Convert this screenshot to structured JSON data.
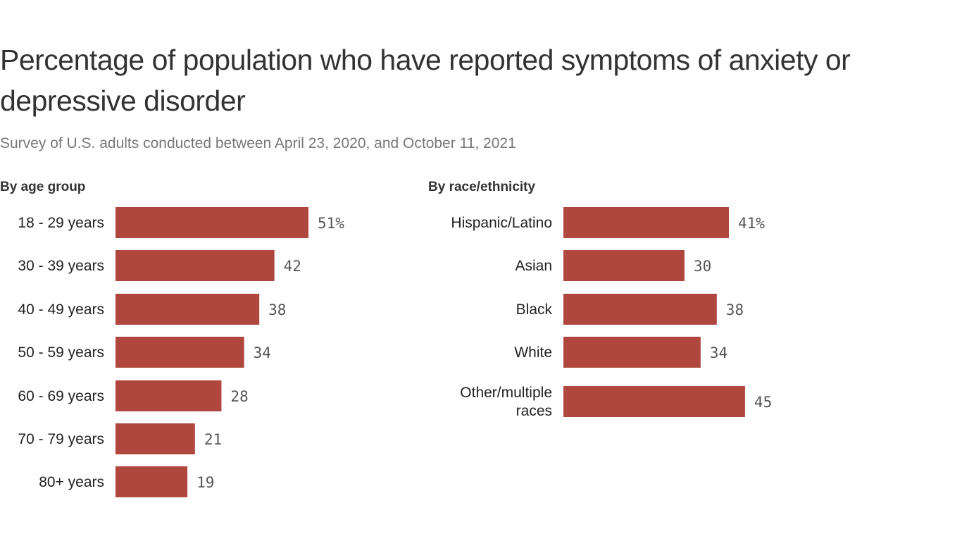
{
  "title": "Percentage of population who have reported symptoms of anxiety or depressive disorder",
  "subtitle": "Survey of U.S. adults conducted between April 23, 2020, and October 11, 2021",
  "colors": {
    "bar": "#b0473e"
  },
  "chart_data": [
    {
      "type": "bar",
      "orientation": "horizontal",
      "title": "By age group",
      "categories": [
        "18 - 29 years",
        "30 - 39 years",
        "40 - 49 years",
        "50 - 59 years",
        "60 - 69 years",
        "70 - 79 years",
        "80+ years"
      ],
      "values": [
        51,
        42,
        38,
        34,
        28,
        21,
        19
      ],
      "value_labels": [
        "51%",
        "42",
        "38",
        "34",
        "28",
        "21",
        "19"
      ],
      "xlim": [
        0,
        100
      ],
      "grid": false
    },
    {
      "type": "bar",
      "orientation": "horizontal",
      "title": "By race/ethnicity",
      "categories": [
        "Hispanic/Latino",
        "Asian",
        "Black",
        "White",
        "Other/multiple races"
      ],
      "values": [
        41,
        30,
        38,
        34,
        45
      ],
      "value_labels": [
        "41%",
        "30",
        "38",
        "34",
        "45"
      ],
      "xlim": [
        0,
        100
      ],
      "grid": false
    }
  ]
}
